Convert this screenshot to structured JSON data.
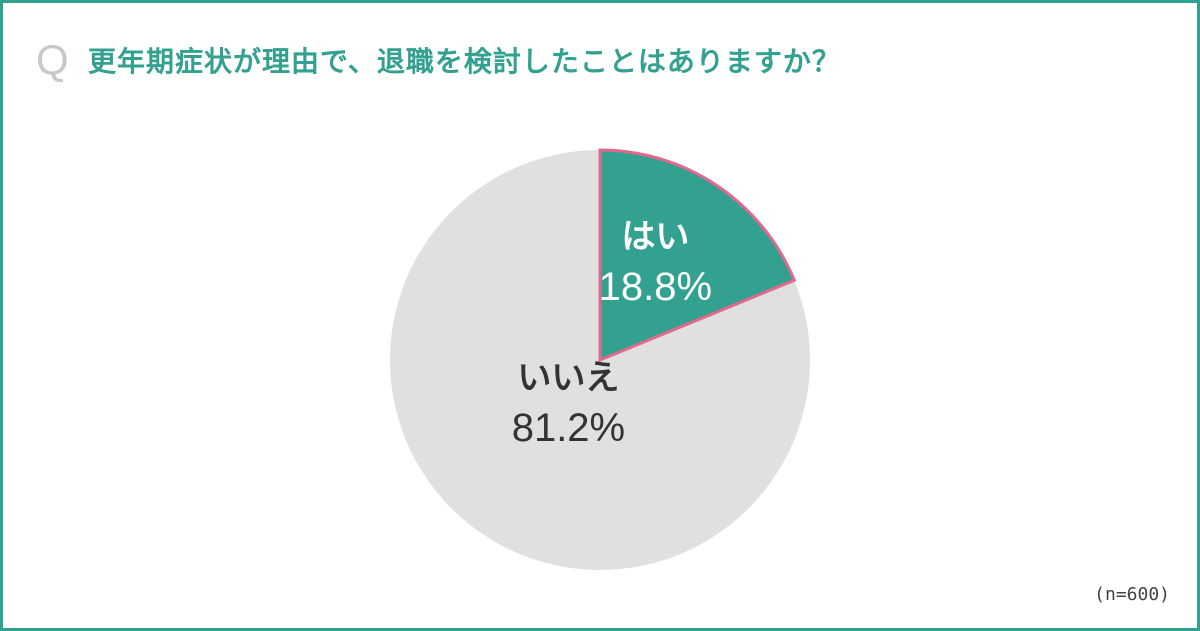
{
  "question": {
    "mark": "Q",
    "text": "更年期症状が理由で、退職を検討したことはありますか？"
  },
  "chart_data": {
    "type": "pie",
    "title": "更年期症状が理由で、退職を検討したことはありますか？",
    "slices": [
      {
        "label": "はい",
        "value": 18.8,
        "value_label": "18.8%",
        "color": "#33a190",
        "text_color": "#ffffff",
        "outline": "#e0698d"
      },
      {
        "label": "いいえ",
        "value": 81.2,
        "value_label": "81.2%",
        "color": "#e0e0e0",
        "text_color": "#333333",
        "outline": ""
      }
    ],
    "start": "12 o'clock",
    "direction": "clockwise"
  },
  "note": "(n=600)",
  "colors": {
    "accent": "#33a190",
    "highlight_outline": "#e0698d",
    "other": "#e0e0e0",
    "q_mark": "#c8c8c8"
  }
}
